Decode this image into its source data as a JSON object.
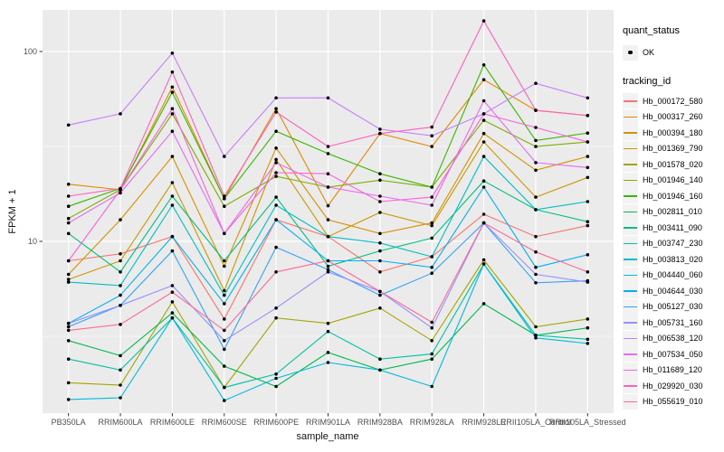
{
  "figure": {
    "background": "#FFFFFF",
    "panel_background": "#EBEBEB",
    "grid_color": "#FFFFFF",
    "tick_mark_color": "#333333",
    "tick_label_color": "#4D4D4D",
    "axis_title_color": "#111111",
    "legend_key_background": "#F2F2F2",
    "point_color": "#000000"
  },
  "legend": {
    "quant_status": {
      "title": "quant_status",
      "items": [
        {
          "label": "OK",
          "marker": "point-icon",
          "color": "#000000"
        }
      ]
    },
    "tracking": {
      "title": "tracking_id"
    }
  },
  "chart_data": {
    "type": "line",
    "title": "",
    "xlabel": "sample_name",
    "ylabel": "FPKM + 1",
    "y_scale": "log10",
    "y_ticks": [
      10,
      100
    ],
    "y_tick_labels": [
      "10",
      "100"
    ],
    "y_minor_ticks": [
      3.1623,
      31.623
    ],
    "ylim": [
      1.25,
      165
    ],
    "grid": true,
    "legend_position": "right",
    "marker": "black-point",
    "categories": [
      "PB350LA",
      "RRIM600LA",
      "RRIM600LE",
      "RRIM600SE",
      "RRIM600PE",
      "RRIM901LA",
      "RRIM928BA",
      "RRIM928LA",
      "RRIM928LE",
      "RRII105LA_Control",
      "RRII105LA_Stressed"
    ],
    "series": [
      {
        "name": "Hb_000172_580",
        "color": "#F8766D",
        "values": [
          7.9,
          8.6,
          10.6,
          3.9,
          13.0,
          10.6,
          6.9,
          8.3,
          13.9,
          10.6,
          12.1
        ]
      },
      {
        "name": "Hb_000317_260",
        "color": "#E58700",
        "values": [
          20.0,
          18.7,
          65.0,
          16.8,
          50.0,
          15.4,
          37.0,
          31.6,
          71.0,
          49.0,
          46.0
        ]
      },
      {
        "name": "Hb_000394_180",
        "color": "#D89000",
        "values": [
          6.7,
          13.0,
          28.0,
          7.4,
          31.0,
          13.0,
          11.0,
          12.5,
          37.0,
          23.7,
          28.0
        ]
      },
      {
        "name": "Hb_001369_790",
        "color": "#C99800",
        "values": [
          6.3,
          7.9,
          20.4,
          5.5,
          27.0,
          10.6,
          14.2,
          12.1,
          33.4,
          17.1,
          21.7
        ]
      },
      {
        "name": "Hb_001578_020",
        "color": "#A3A500",
        "values": [
          1.8,
          1.75,
          4.8,
          1.7,
          3.95,
          3.7,
          4.45,
          3.0,
          8.0,
          3.55,
          3.9
        ]
      },
      {
        "name": "Hb_001946_140",
        "color": "#7CAE00",
        "values": [
          13.2,
          18.7,
          47.0,
          15.3,
          22.0,
          19.3,
          21.0,
          19.3,
          43.4,
          31.6,
          33.4
        ]
      },
      {
        "name": "Hb_001946_160",
        "color": "#39B600",
        "values": [
          15.3,
          19.0,
          61.0,
          16.8,
          38.0,
          29.0,
          22.7,
          19.3,
          85.0,
          34.0,
          37.2
        ]
      },
      {
        "name": "Hb_002811_010",
        "color": "#00BB4E",
        "values": [
          3.0,
          2.5,
          4.2,
          2.2,
          1.72,
          2.6,
          2.1,
          2.4,
          4.7,
          3.2,
          3.5
        ]
      },
      {
        "name": "Hb_003411_090",
        "color": "#00BF7D",
        "values": [
          11.0,
          6.9,
          17.3,
          7.9,
          17.1,
          7.4,
          8.9,
          10.4,
          20.8,
          14.7,
          12.7
        ]
      },
      {
        "name": "Hb_003747_230",
        "color": "#00C1A3",
        "values": [
          2.4,
          2.1,
          3.95,
          1.7,
          2.0,
          3.35,
          2.4,
          2.55,
          7.6,
          3.2,
          3.05
        ]
      },
      {
        "name": "Hb_003813_020",
        "color": "#00BFC4",
        "values": [
          6.1,
          5.85,
          15.5,
          5.2,
          15.5,
          10.6,
          9.8,
          8.3,
          28.0,
          14.7,
          16.2
        ]
      },
      {
        "name": "Hb_004440_060",
        "color": "#00BAE0",
        "values": [
          1.47,
          1.5,
          3.95,
          1.45,
          1.9,
          2.3,
          2.1,
          1.72,
          7.6,
          3.1,
          2.9
        ]
      },
      {
        "name": "Hb_004644_030",
        "color": "#00B0F6",
        "values": [
          3.7,
          5.2,
          10.6,
          4.7,
          13.0,
          7.9,
          7.9,
          7.3,
          19.3,
          7.3,
          8.5
        ]
      },
      {
        "name": "Hb_005127_030",
        "color": "#35A2FF",
        "values": [
          3.55,
          4.6,
          8.9,
          2.7,
          9.3,
          7.1,
          5.2,
          6.8,
          12.5,
          6.05,
          6.2
        ]
      },
      {
        "name": "Hb_005731_160",
        "color": "#9590FF",
        "values": [
          3.7,
          4.6,
          5.85,
          3.0,
          4.45,
          6.9,
          5.45,
          3.5,
          12.5,
          6.7,
          6.1
        ]
      },
      {
        "name": "Hb_006538_120",
        "color": "#C77CFF",
        "values": [
          41.0,
          47.0,
          98.0,
          28.0,
          57.0,
          57.0,
          39.0,
          36.0,
          47.0,
          68.0,
          57.0
        ]
      },
      {
        "name": "Hb_007534_050",
        "color": "#E76BF3",
        "values": [
          12.5,
          18.0,
          38.0,
          11.0,
          26.0,
          19.3,
          17.3,
          15.5,
          55.0,
          26.0,
          24.5
        ]
      },
      {
        "name": "Hb_011689_120",
        "color": "#FA62DB",
        "values": [
          7.9,
          18.7,
          50.0,
          11.0,
          23.0,
          22.7,
          16.2,
          17.1,
          47.0,
          39.8,
          33.4
        ]
      },
      {
        "name": "Hb_029920_030",
        "color": "#FF62BC",
        "values": [
          17.3,
          19.0,
          78.0,
          17.3,
          48.0,
          31.6,
          37.0,
          40.0,
          145.0,
          49.0,
          46.0
        ]
      },
      {
        "name": "Hb_055619_010",
        "color": "#FF6A98",
        "values": [
          3.4,
          3.65,
          5.4,
          3.4,
          6.9,
          7.9,
          5.45,
          3.75,
          12.5,
          8.8,
          6.9
        ]
      }
    ]
  }
}
